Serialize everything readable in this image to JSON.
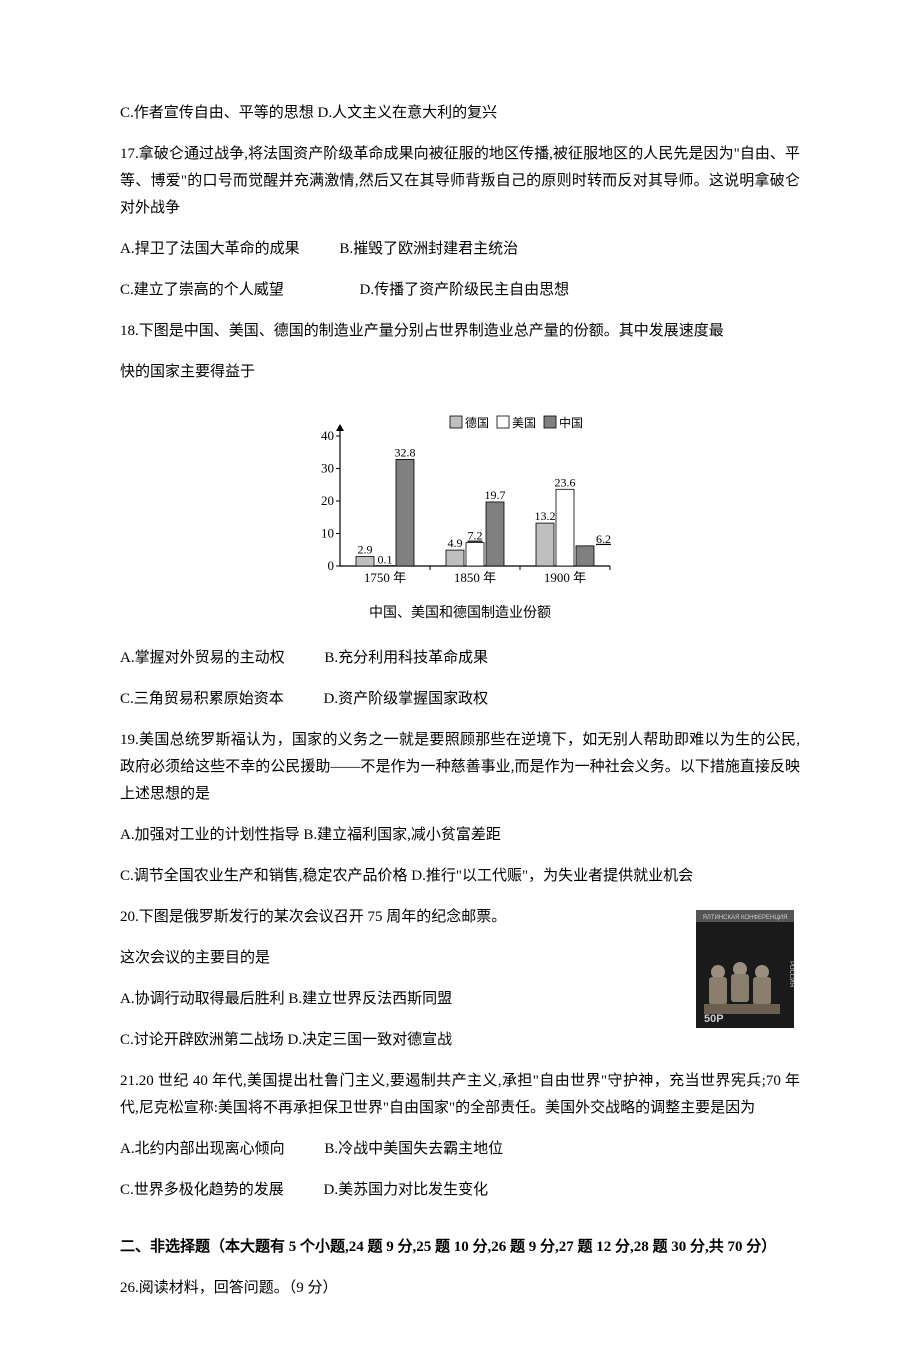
{
  "q16": {
    "c": "C.作者宣传自由、平等的思想",
    "d": "D.人文主义在意大利的复兴"
  },
  "q17": {
    "stem": "17.拿破仑通过战争,将法国资产阶级革命成果向被征服的地区传播,被征服地区的人民先是因为\"自由、平等、博爱\"的口号而觉醒并充满激情,然后又在其导师背叛自己的原则时转而反对其导师。这说明拿破仑对外战争",
    "a": "A.捍卫了法国大革命的成果",
    "b": "B.摧毁了欧洲封建君主统治",
    "c": "C.建立了崇高的个人威望",
    "d": "D.传播了资产阶级民主自由思想"
  },
  "q18": {
    "stem1": "18.下图是中国、美国、德国的制造业产量分别占世界制造业总产量的份额。其中发展速度最",
    "stem2": "快的国家主要得益于",
    "a": "A.掌握对外贸易的主动权",
    "b": "B.充分利用科技革命成果",
    "c": "C.三角贸易积累原始资本",
    "d": "D.资产阶级掌握国家政权"
  },
  "chart": {
    "type": "bar",
    "legend": [
      "德国",
      "美国",
      "中国"
    ],
    "legend_colors": {
      "de": "#bfbfbf",
      "us": "#ffffff",
      "cn": "#808080"
    },
    "categories": [
      "1750 年",
      "1850 年",
      "1900 年"
    ],
    "ylim": [
      0,
      40
    ],
    "ytick_step": 10,
    "data": {
      "1750": {
        "de": 2.9,
        "us": 0.1,
        "cn": 32.8
      },
      "1850": {
        "de": 4.9,
        "us": 7.2,
        "cn": 19.7
      },
      "1900": {
        "de": 13.2,
        "us": 23.6,
        "cn": 6.2
      }
    },
    "labels": {
      "1750": {
        "de": "2.9",
        "us": "0.1",
        "cn": "32.8"
      },
      "1850": {
        "de": "4.9",
        "us": "7.2",
        "cn": "19.7"
      },
      "1900": {
        "de": "13.2",
        "us": "23.6",
        "cn": "6.2"
      }
    },
    "caption": "中国、美国和德国制造业份额",
    "axis_color": "#000000",
    "tick_fontsize": 13,
    "label_fontsize": 12
  },
  "q19": {
    "stem": "19.美国总统罗斯福认为，国家的义务之一就是要照顾那些在逆境下，如无别人帮助即难以为生的公民,政府必须给这些不幸的公民援助——不是作为一种慈善事业,而是作为一种社会义务。以下措施直接反映上述思想的是",
    "a": "A.加强对工业的计划性指导",
    "b": "B.建立福利国家,减小贫富差距",
    "c": "C.调节全国农业生产和销售,稳定农产品价格",
    "d": "D.推行\"以工代赈\"，为失业者提供就业机会"
  },
  "q20": {
    "stem1": "20.下图是俄罗斯发行的某次会议召开 75 周年的纪念邮票。",
    "stem2": "这次会议的主要目的是",
    "a": "A.协调行动取得最后胜利",
    "b": "B.建立世界反法西斯同盟",
    "c": "C.讨论开辟欧洲第二战场",
    "d": "D.决定三国一致对德宣战",
    "stamp": {
      "title": "ЯЛТИНСКАЯ КОНФЕРЕНЦИЯ",
      "value": "50P",
      "colors": {
        "bg": "#1a1a1a",
        "perf": "#ffffff",
        "band": "#555555",
        "text": "#cccccc"
      }
    }
  },
  "q21": {
    "stem": "21.20 世纪 40 年代,美国提出杜鲁门主义,要遏制共产主义,承担\"自由世界\"守护神，充当世界宪兵;70 年代,尼克松宣称:美国将不再承担保卫世界\"自由国家\"的全部责任。美国外交战略的调整主要是因为",
    "a": "A.北约内部出现离心倾向",
    "b": "B.冷战中美国失去霸主地位",
    "c": "C.世界多极化趋势的发展",
    "d": "D.美苏国力对比发生变化"
  },
  "section2": {
    "title": "二、非选择题（本大题有 5 个小题,24 题 9 分,25 题 10 分,26 题 9 分,27 题 12 分,28 题 30 分,共 70 分）"
  },
  "q26": {
    "stem": "26.阅读材料，回答问题。（9 分）"
  }
}
